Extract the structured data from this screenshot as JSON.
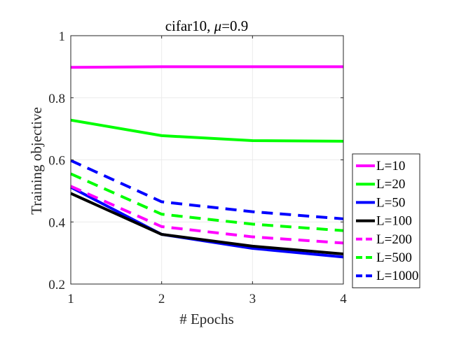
{
  "chart_data": {
    "type": "line",
    "title_prefix": "cifar10, ",
    "title_mu": "μ",
    "title_suffix": "=0.9",
    "xlabel": "# Epochs",
    "ylabel": "Training objective",
    "x": [
      1,
      2,
      3,
      4
    ],
    "xlim": [
      1,
      4
    ],
    "ylim": [
      0.2,
      1
    ],
    "xticks": [
      "1",
      "2",
      "3",
      "4"
    ],
    "yticks": [
      "0.2",
      "0.4",
      "0.6",
      "0.8",
      "1"
    ],
    "grid": true,
    "legend_position": "right",
    "series": [
      {
        "name": "L=10",
        "color": "#ff00ff",
        "dash": "solid",
        "values": [
          0.898,
          0.9,
          0.9,
          0.9
        ]
      },
      {
        "name": "L=20",
        "color": "#00ff00",
        "dash": "solid",
        "values": [
          0.728,
          0.678,
          0.662,
          0.66
        ]
      },
      {
        "name": "L=50",
        "color": "#0000ff",
        "dash": "solid",
        "values": [
          0.512,
          0.36,
          0.315,
          0.287
        ]
      },
      {
        "name": "L=100",
        "color": "#000000",
        "dash": "solid",
        "values": [
          0.492,
          0.36,
          0.322,
          0.297
        ]
      },
      {
        "name": "L=200",
        "color": "#ff00ff",
        "dash": "dashed",
        "values": [
          0.515,
          0.385,
          0.352,
          0.332
        ]
      },
      {
        "name": "L=500",
        "color": "#00ff00",
        "dash": "dashed",
        "values": [
          0.555,
          0.425,
          0.393,
          0.372
        ]
      },
      {
        "name": "L=1000",
        "color": "#0000ff",
        "dash": "dashed",
        "values": [
          0.598,
          0.465,
          0.433,
          0.41
        ]
      }
    ]
  }
}
